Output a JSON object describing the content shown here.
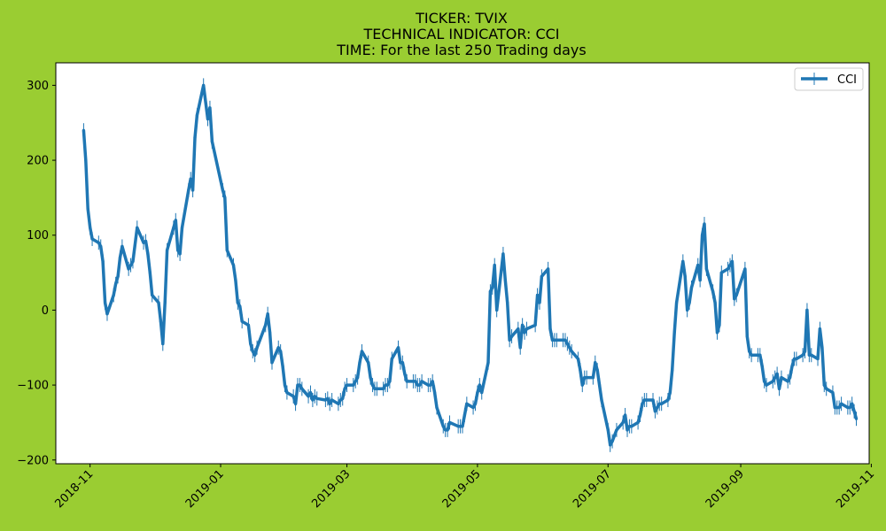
{
  "chart_data": {
    "type": "line",
    "title_lines": [
      "TICKER:  TVIX",
      "TECHNICAL INDICATOR:  CCI",
      "TIME: For the last 250 Trading days"
    ],
    "xlabel": "",
    "ylabel": "",
    "ylim": [
      -205,
      330
    ],
    "yticks": [
      -200,
      -100,
      0,
      100,
      200,
      300
    ],
    "xlim": [
      "2018-10-16",
      "2019-10-31"
    ],
    "xticks": [
      {
        "date": "2018-11-01",
        "label": "2018-11"
      },
      {
        "date": "2019-01-01",
        "label": "2019-01"
      },
      {
        "date": "2019-03-01",
        "label": "2019-03"
      },
      {
        "date": "2019-05-01",
        "label": "2019-05"
      },
      {
        "date": "2019-07-01",
        "label": "2019-07"
      },
      {
        "date": "2019-09-01",
        "label": "2019-09"
      },
      {
        "date": "2019-11-01",
        "label": "2019-11"
      }
    ],
    "legend_position": "top-right",
    "series": [
      {
        "name": "CCI",
        "color": "#1f77b4",
        "points": [
          [
            "2018-10-29",
            240
          ],
          [
            "2018-10-30",
            200
          ],
          [
            "2018-10-31",
            135
          ],
          [
            "2018-11-01",
            110
          ],
          [
            "2018-11-02",
            95
          ],
          [
            "2018-11-05",
            90
          ],
          [
            "2018-11-06",
            85
          ],
          [
            "2018-11-07",
            65
          ],
          [
            "2018-11-08",
            10
          ],
          [
            "2018-11-09",
            -5
          ],
          [
            "2018-11-12",
            20
          ],
          [
            "2018-11-13",
            35
          ],
          [
            "2018-11-14",
            45
          ],
          [
            "2018-11-15",
            70
          ],
          [
            "2018-11-16",
            85
          ],
          [
            "2018-11-19",
            55
          ],
          [
            "2018-11-20",
            60
          ],
          [
            "2018-11-21",
            65
          ],
          [
            "2018-11-23",
            110
          ],
          [
            "2018-11-26",
            90
          ],
          [
            "2018-11-27",
            92
          ],
          [
            "2018-11-28",
            75
          ],
          [
            "2018-11-29",
            50
          ],
          [
            "2018-11-30",
            20
          ],
          [
            "2018-12-03",
            10
          ],
          [
            "2018-12-04",
            -15
          ],
          [
            "2018-12-05",
            -45
          ],
          [
            "2018-12-06",
            10
          ],
          [
            "2018-12-07",
            80
          ],
          [
            "2018-12-10",
            110
          ],
          [
            "2018-12-11",
            120
          ],
          [
            "2018-12-12",
            80
          ],
          [
            "2018-12-13",
            75
          ],
          [
            "2018-12-14",
            110
          ],
          [
            "2018-12-17",
            160
          ],
          [
            "2018-12-18",
            175
          ],
          [
            "2018-12-19",
            160
          ],
          [
            "2018-12-20",
            230
          ],
          [
            "2018-12-21",
            260
          ],
          [
            "2018-12-24",
            300
          ],
          [
            "2018-12-26",
            255
          ],
          [
            "2018-12-27",
            270
          ],
          [
            "2018-12-28",
            225
          ],
          [
            "2019-01-02",
            160
          ],
          [
            "2019-01-03",
            150
          ],
          [
            "2019-01-04",
            80
          ],
          [
            "2019-01-07",
            60
          ],
          [
            "2019-01-08",
            40
          ],
          [
            "2019-01-09",
            10
          ],
          [
            "2019-01-10",
            5
          ],
          [
            "2019-01-11",
            -15
          ],
          [
            "2019-01-14",
            -20
          ],
          [
            "2019-01-15",
            -45
          ],
          [
            "2019-01-16",
            -55
          ],
          [
            "2019-01-17",
            -60
          ],
          [
            "2019-01-18",
            -50
          ],
          [
            "2019-01-22",
            -20
          ],
          [
            "2019-01-23",
            -5
          ],
          [
            "2019-01-24",
            -30
          ],
          [
            "2019-01-25",
            -70
          ],
          [
            "2019-01-28",
            -50
          ],
          [
            "2019-01-29",
            -55
          ],
          [
            "2019-01-30",
            -75
          ],
          [
            "2019-01-31",
            -100
          ],
          [
            "2019-02-01",
            -110
          ],
          [
            "2019-02-04",
            -115
          ],
          [
            "2019-02-05",
            -125
          ],
          [
            "2019-02-06",
            -100
          ],
          [
            "2019-02-07",
            -100
          ],
          [
            "2019-02-08",
            -105
          ],
          [
            "2019-02-11",
            -115
          ],
          [
            "2019-02-12",
            -110
          ],
          [
            "2019-02-13",
            -120
          ],
          [
            "2019-02-14",
            -115
          ],
          [
            "2019-02-15",
            -118
          ],
          [
            "2019-02-19",
            -120
          ],
          [
            "2019-02-20",
            -118
          ],
          [
            "2019-02-21",
            -125
          ],
          [
            "2019-02-22",
            -120
          ],
          [
            "2019-02-25",
            -125
          ],
          [
            "2019-02-26",
            -120
          ],
          [
            "2019-02-27",
            -118
          ],
          [
            "2019-02-28",
            -105
          ],
          [
            "2019-03-01",
            -100
          ],
          [
            "2019-03-04",
            -100
          ],
          [
            "2019-03-05",
            -95
          ],
          [
            "2019-03-06",
            -90
          ],
          [
            "2019-03-07",
            -70
          ],
          [
            "2019-03-08",
            -55
          ],
          [
            "2019-03-11",
            -70
          ],
          [
            "2019-03-12",
            -90
          ],
          [
            "2019-03-13",
            -100
          ],
          [
            "2019-03-14",
            -105
          ],
          [
            "2019-03-15",
            -105
          ],
          [
            "2019-03-18",
            -105
          ],
          [
            "2019-03-19",
            -100
          ],
          [
            "2019-03-20",
            -100
          ],
          [
            "2019-03-21",
            -95
          ],
          [
            "2019-03-22",
            -65
          ],
          [
            "2019-03-25",
            -50
          ],
          [
            "2019-03-26",
            -70
          ],
          [
            "2019-03-27",
            -70
          ],
          [
            "2019-03-28",
            -85
          ],
          [
            "2019-03-29",
            -95
          ],
          [
            "2019-04-01",
            -95
          ],
          [
            "2019-04-02",
            -95
          ],
          [
            "2019-04-03",
            -100
          ],
          [
            "2019-04-04",
            -100
          ],
          [
            "2019-04-05",
            -95
          ],
          [
            "2019-04-08",
            -100
          ],
          [
            "2019-04-09",
            -100
          ],
          [
            "2019-04-10",
            -95
          ],
          [
            "2019-04-11",
            -110
          ],
          [
            "2019-04-12",
            -130
          ],
          [
            "2019-04-15",
            -155
          ],
          [
            "2019-04-16",
            -160
          ],
          [
            "2019-04-17",
            -160
          ],
          [
            "2019-04-18",
            -150
          ],
          [
            "2019-04-22",
            -155
          ],
          [
            "2019-04-23",
            -155
          ],
          [
            "2019-04-24",
            -155
          ],
          [
            "2019-04-25",
            -140
          ],
          [
            "2019-04-26",
            -125
          ],
          [
            "2019-04-29",
            -130
          ],
          [
            "2019-04-30",
            -125
          ],
          [
            "2019-05-01",
            -110
          ],
          [
            "2019-05-02",
            -100
          ],
          [
            "2019-05-03",
            -110
          ],
          [
            "2019-05-06",
            -70
          ],
          [
            "2019-05-07",
            25
          ],
          [
            "2019-05-08",
            30
          ],
          [
            "2019-05-09",
            60
          ],
          [
            "2019-05-10",
            0
          ],
          [
            "2019-05-13",
            75
          ],
          [
            "2019-05-14",
            40
          ],
          [
            "2019-05-15",
            10
          ],
          [
            "2019-05-16",
            -40
          ],
          [
            "2019-05-17",
            -35
          ],
          [
            "2019-05-20",
            -25
          ],
          [
            "2019-05-21",
            -50
          ],
          [
            "2019-05-22",
            -20
          ],
          [
            "2019-05-23",
            -30
          ],
          [
            "2019-05-24",
            -25
          ],
          [
            "2019-05-28",
            -20
          ],
          [
            "2019-05-29",
            20
          ],
          [
            "2019-05-30",
            10
          ],
          [
            "2019-05-31",
            45
          ],
          [
            "2019-06-03",
            55
          ],
          [
            "2019-06-04",
            -25
          ],
          [
            "2019-06-05",
            -40
          ],
          [
            "2019-06-06",
            -40
          ],
          [
            "2019-06-07",
            -40
          ],
          [
            "2019-06-10",
            -40
          ],
          [
            "2019-06-11",
            -40
          ],
          [
            "2019-06-12",
            -45
          ],
          [
            "2019-06-13",
            -50
          ],
          [
            "2019-06-14",
            -55
          ],
          [
            "2019-06-17",
            -65
          ],
          [
            "2019-06-18",
            -80
          ],
          [
            "2019-06-19",
            -100
          ],
          [
            "2019-06-20",
            -90
          ],
          [
            "2019-06-21",
            -90
          ],
          [
            "2019-06-24",
            -90
          ],
          [
            "2019-06-25",
            -70
          ],
          [
            "2019-06-26",
            -80
          ],
          [
            "2019-06-27",
            -100
          ],
          [
            "2019-06-28",
            -120
          ],
          [
            "2019-07-01",
            -160
          ],
          [
            "2019-07-02",
            -180
          ],
          [
            "2019-07-03",
            -175
          ],
          [
            "2019-07-05",
            -160
          ],
          [
            "2019-07-08",
            -150
          ],
          [
            "2019-07-09",
            -140
          ],
          [
            "2019-07-10",
            -160
          ],
          [
            "2019-07-11",
            -155
          ],
          [
            "2019-07-12",
            -155
          ],
          [
            "2019-07-15",
            -150
          ],
          [
            "2019-07-16",
            -140
          ],
          [
            "2019-07-17",
            -125
          ],
          [
            "2019-07-18",
            -120
          ],
          [
            "2019-07-19",
            -120
          ],
          [
            "2019-07-22",
            -120
          ],
          [
            "2019-07-23",
            -135
          ],
          [
            "2019-07-24",
            -130
          ],
          [
            "2019-07-25",
            -125
          ],
          [
            "2019-07-26",
            -125
          ],
          [
            "2019-07-29",
            -120
          ],
          [
            "2019-07-30",
            -110
          ],
          [
            "2019-07-31",
            -80
          ],
          [
            "2019-08-01",
            -30
          ],
          [
            "2019-08-02",
            10
          ],
          [
            "2019-08-05",
            65
          ],
          [
            "2019-08-06",
            45
          ],
          [
            "2019-08-07",
            0
          ],
          [
            "2019-08-08",
            10
          ],
          [
            "2019-08-09",
            30
          ],
          [
            "2019-08-12",
            60
          ],
          [
            "2019-08-13",
            40
          ],
          [
            "2019-08-14",
            100
          ],
          [
            "2019-08-15",
            115
          ],
          [
            "2019-08-16",
            55
          ],
          [
            "2019-08-19",
            25
          ],
          [
            "2019-08-20",
            10
          ],
          [
            "2019-08-21",
            -30
          ],
          [
            "2019-08-22",
            -20
          ],
          [
            "2019-08-23",
            50
          ],
          [
            "2019-08-26",
            55
          ],
          [
            "2019-08-27",
            60
          ],
          [
            "2019-08-28",
            65
          ],
          [
            "2019-08-29",
            15
          ],
          [
            "2019-08-30",
            20
          ],
          [
            "2019-09-03",
            55
          ],
          [
            "2019-09-04",
            -35
          ],
          [
            "2019-09-05",
            -55
          ],
          [
            "2019-09-06",
            -60
          ],
          [
            "2019-09-09",
            -60
          ],
          [
            "2019-09-10",
            -60
          ],
          [
            "2019-09-11",
            -75
          ],
          [
            "2019-09-12",
            -95
          ],
          [
            "2019-09-13",
            -100
          ],
          [
            "2019-09-16",
            -95
          ],
          [
            "2019-09-17",
            -90
          ],
          [
            "2019-09-18",
            -85
          ],
          [
            "2019-09-19",
            -105
          ],
          [
            "2019-09-20",
            -90
          ],
          [
            "2019-09-23",
            -95
          ],
          [
            "2019-09-24",
            -90
          ],
          [
            "2019-09-25",
            -75
          ],
          [
            "2019-09-26",
            -65
          ],
          [
            "2019-09-27",
            -65
          ],
          [
            "2019-09-30",
            -60
          ],
          [
            "2019-10-01",
            -55
          ],
          [
            "2019-10-02",
            0
          ],
          [
            "2019-10-03",
            -60
          ],
          [
            "2019-10-04",
            -60
          ],
          [
            "2019-10-07",
            -65
          ],
          [
            "2019-10-08",
            -25
          ],
          [
            "2019-10-09",
            -50
          ],
          [
            "2019-10-10",
            -100
          ],
          [
            "2019-10-11",
            -105
          ],
          [
            "2019-10-14",
            -110
          ],
          [
            "2019-10-15",
            -130
          ],
          [
            "2019-10-16",
            -130
          ],
          [
            "2019-10-17",
            -130
          ],
          [
            "2019-10-18",
            -125
          ],
          [
            "2019-10-21",
            -130
          ],
          [
            "2019-10-22",
            -130
          ],
          [
            "2019-10-23",
            -125
          ],
          [
            "2019-10-24",
            -135
          ],
          [
            "2019-10-25",
            -145
          ]
        ]
      }
    ]
  }
}
